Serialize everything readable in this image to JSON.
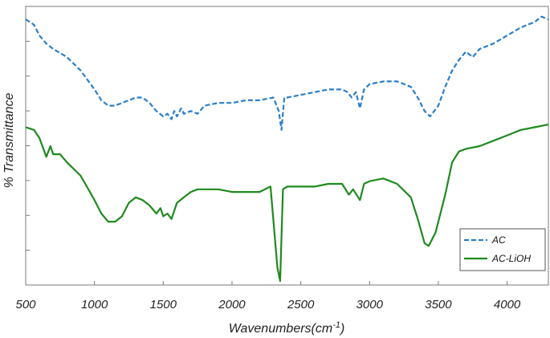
{
  "chart_data": {
    "type": "line",
    "title": "",
    "xlabel_main": "Wavenumbers(cm",
    "xlabel_sup": "-1",
    "xlabel_close": ")",
    "ylabel": "% Transmittance",
    "xlim": [
      500,
      4300
    ],
    "ylim": [
      0,
      1
    ],
    "y_ticks_labeled": false,
    "x_ticks": [
      500,
      1000,
      1500,
      2000,
      2500,
      3000,
      3500,
      4000
    ],
    "x_tick_labels": [
      "500",
      "1000",
      "1500",
      "2000",
      "2500",
      "3000",
      "3500",
      "4000"
    ],
    "legend_position": "bottom-right",
    "series": [
      {
        "name": "AC",
        "color": "#2a7fc9",
        "style": "dashed",
        "points": [
          [
            500,
            0.97
          ],
          [
            560,
            0.95
          ],
          [
            600,
            0.91
          ],
          [
            650,
            0.88
          ],
          [
            700,
            0.86
          ],
          [
            800,
            0.83
          ],
          [
            900,
            0.78
          ],
          [
            1000,
            0.71
          ],
          [
            1050,
            0.67
          ],
          [
            1100,
            0.65
          ],
          [
            1150,
            0.65
          ],
          [
            1200,
            0.66
          ],
          [
            1300,
            0.68
          ],
          [
            1350,
            0.68
          ],
          [
            1400,
            0.66
          ],
          [
            1450,
            0.63
          ],
          [
            1500,
            0.61
          ],
          [
            1530,
            0.62
          ],
          [
            1560,
            0.6
          ],
          [
            1580,
            0.63
          ],
          [
            1600,
            0.61
          ],
          [
            1630,
            0.64
          ],
          [
            1650,
            0.62
          ],
          [
            1700,
            0.63
          ],
          [
            1750,
            0.62
          ],
          [
            1800,
            0.65
          ],
          [
            1900,
            0.66
          ],
          [
            2000,
            0.66
          ],
          [
            2100,
            0.67
          ],
          [
            2200,
            0.67
          ],
          [
            2300,
            0.68
          ],
          [
            2340,
            0.63
          ],
          [
            2360,
            0.56
          ],
          [
            2380,
            0.68
          ],
          [
            2400,
            0.68
          ],
          [
            2500,
            0.69
          ],
          [
            2600,
            0.7
          ],
          [
            2700,
            0.71
          ],
          [
            2800,
            0.71
          ],
          [
            2840,
            0.7
          ],
          [
            2870,
            0.68
          ],
          [
            2900,
            0.7
          ],
          [
            2930,
            0.64
          ],
          [
            2960,
            0.71
          ],
          [
            3000,
            0.73
          ],
          [
            3100,
            0.74
          ],
          [
            3200,
            0.74
          ],
          [
            3300,
            0.72
          ],
          [
            3350,
            0.68
          ],
          [
            3400,
            0.63
          ],
          [
            3440,
            0.61
          ],
          [
            3500,
            0.65
          ],
          [
            3550,
            0.72
          ],
          [
            3600,
            0.78
          ],
          [
            3650,
            0.82
          ],
          [
            3700,
            0.85
          ],
          [
            3750,
            0.83
          ],
          [
            3800,
            0.86
          ],
          [
            3900,
            0.88
          ],
          [
            4000,
            0.91
          ],
          [
            4100,
            0.94
          ],
          [
            4200,
            0.96
          ],
          [
            4250,
            0.98
          ],
          [
            4300,
            0.97
          ]
        ]
      },
      {
        "name": "AC-LiOH",
        "color": "#1e8a1e",
        "style": "solid",
        "points": [
          [
            500,
            0.57
          ],
          [
            560,
            0.56
          ],
          [
            600,
            0.53
          ],
          [
            650,
            0.46
          ],
          [
            680,
            0.5
          ],
          [
            700,
            0.47
          ],
          [
            750,
            0.47
          ],
          [
            800,
            0.44
          ],
          [
            900,
            0.39
          ],
          [
            1000,
            0.3
          ],
          [
            1050,
            0.25
          ],
          [
            1100,
            0.22
          ],
          [
            1150,
            0.22
          ],
          [
            1200,
            0.24
          ],
          [
            1250,
            0.29
          ],
          [
            1300,
            0.31
          ],
          [
            1350,
            0.3
          ],
          [
            1400,
            0.28
          ],
          [
            1450,
            0.25
          ],
          [
            1480,
            0.27
          ],
          [
            1500,
            0.24
          ],
          [
            1530,
            0.25
          ],
          [
            1560,
            0.23
          ],
          [
            1600,
            0.29
          ],
          [
            1650,
            0.31
          ],
          [
            1700,
            0.33
          ],
          [
            1750,
            0.34
          ],
          [
            1800,
            0.34
          ],
          [
            1900,
            0.34
          ],
          [
            2000,
            0.33
          ],
          [
            2100,
            0.33
          ],
          [
            2200,
            0.33
          ],
          [
            2280,
            0.35
          ],
          [
            2330,
            0.05
          ],
          [
            2350,
            0.0
          ],
          [
            2370,
            0.34
          ],
          [
            2400,
            0.35
          ],
          [
            2500,
            0.35
          ],
          [
            2600,
            0.35
          ],
          [
            2700,
            0.36
          ],
          [
            2800,
            0.36
          ],
          [
            2850,
            0.32
          ],
          [
            2880,
            0.34
          ],
          [
            2930,
            0.3
          ],
          [
            2960,
            0.36
          ],
          [
            3000,
            0.37
          ],
          [
            3100,
            0.38
          ],
          [
            3200,
            0.36
          ],
          [
            3300,
            0.31
          ],
          [
            3350,
            0.23
          ],
          [
            3400,
            0.14
          ],
          [
            3430,
            0.13
          ],
          [
            3480,
            0.18
          ],
          [
            3550,
            0.32
          ],
          [
            3600,
            0.44
          ],
          [
            3650,
            0.48
          ],
          [
            3700,
            0.49
          ],
          [
            3800,
            0.5
          ],
          [
            3900,
            0.52
          ],
          [
            4000,
            0.54
          ],
          [
            4100,
            0.56
          ],
          [
            4200,
            0.57
          ],
          [
            4300,
            0.58
          ]
        ]
      }
    ]
  }
}
